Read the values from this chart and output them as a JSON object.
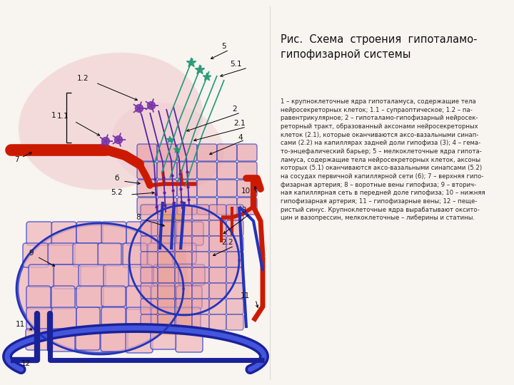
{
  "title": "Рис.  Схема  строения  гипоталамо-\nгипофизарной системы",
  "description_text": "1 – крупноклеточные ядра гипоталамуса, содержащие тела\nнейросекреторных клеток; 1.1 – супраоптическое; 1.2 – па-\nравентрикулярное; 2 – гипоталамо-гипофизарный нейросек-\nреторный тракт, образованный аксонами нейросекреторных\nклеток (2.1), которые оканчиваются аксо-вазальными синап-\nсами (2.2) на капиллярах задней доли гипофиза (3); 4 – гема-\nто-энцефалический барьер; 5 – мелкоклеточные ядра гипота-\nламуса, содержащие тела нейросекреторных клеток, аксоны\nкоторых (5.1) оканчиваются аксо-вазальными синапсами (5.2)\nна сосудах первичной капиллярной сети (6); 7 – верхняя гипо-\nфизарная артерия; 8 – воротные вены гипофиза; 9 – вторич-\nная капиллярная сеть в передней доле гипофиза; 10 – нижняя\nгипофизарная артерия; 11 – гипофизарные вены; 12 – пеще-\nристый синус. Крупноклеточные ядра вырабатывают оксито-\nцин и вазопрессин, мелкоклеточные – либерины и статины.",
  "bg_color": "#f8f4f0",
  "pink_hypo": "#f0c8cc",
  "pink_pituitary": "#f0b8bc",
  "pink_medium": "#e8a0a8",
  "red_artery": "#cc1a00",
  "blue_vein": "#2233bb",
  "blue_dark": "#1a2299",
  "blue_med": "#3344cc",
  "purple_cell": "#7733aa",
  "purple_tract": "#5522aa",
  "teal_cell": "#22997755",
  "teal_line": "#229977",
  "orange_strip": "#e8981a",
  "label_color": "#111111",
  "label_fs": 7.5,
  "title_fs": 10.5
}
